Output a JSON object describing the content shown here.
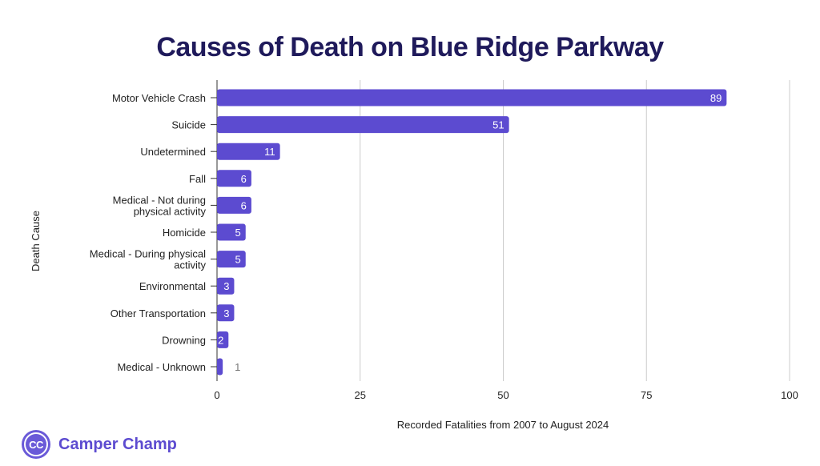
{
  "chart_data": {
    "type": "bar",
    "orientation": "horizontal",
    "title": "Causes of Death on Blue Ridge Parkway",
    "xlabel": "Recorded Fatalities from 2007 to August 2024",
    "ylabel": "Death Cause",
    "categories": [
      [
        "Motor Vehicle Crash"
      ],
      [
        "Suicide"
      ],
      [
        "Undetermined"
      ],
      [
        "Fall"
      ],
      [
        "Medical - Not during",
        "physical activity"
      ],
      [
        "Homicide"
      ],
      [
        "Medical - During physical",
        "activity"
      ],
      [
        "Environmental"
      ],
      [
        "Other Transportation"
      ],
      [
        "Drowning"
      ],
      [
        "Medical - Unknown"
      ]
    ],
    "values": [
      89,
      51,
      11,
      6,
      6,
      5,
      5,
      3,
      3,
      2,
      1
    ],
    "xlim": [
      0,
      100
    ],
    "xticks": [
      0,
      25,
      50,
      75,
      100
    ],
    "grid": true,
    "bar_color": "#5c4bd0",
    "label_inside_color": "#ffffff",
    "label_outside_color": "#757575"
  },
  "brand": {
    "logo_text": "CC",
    "name": "Camper Champ",
    "color": "#5c4bd0"
  }
}
